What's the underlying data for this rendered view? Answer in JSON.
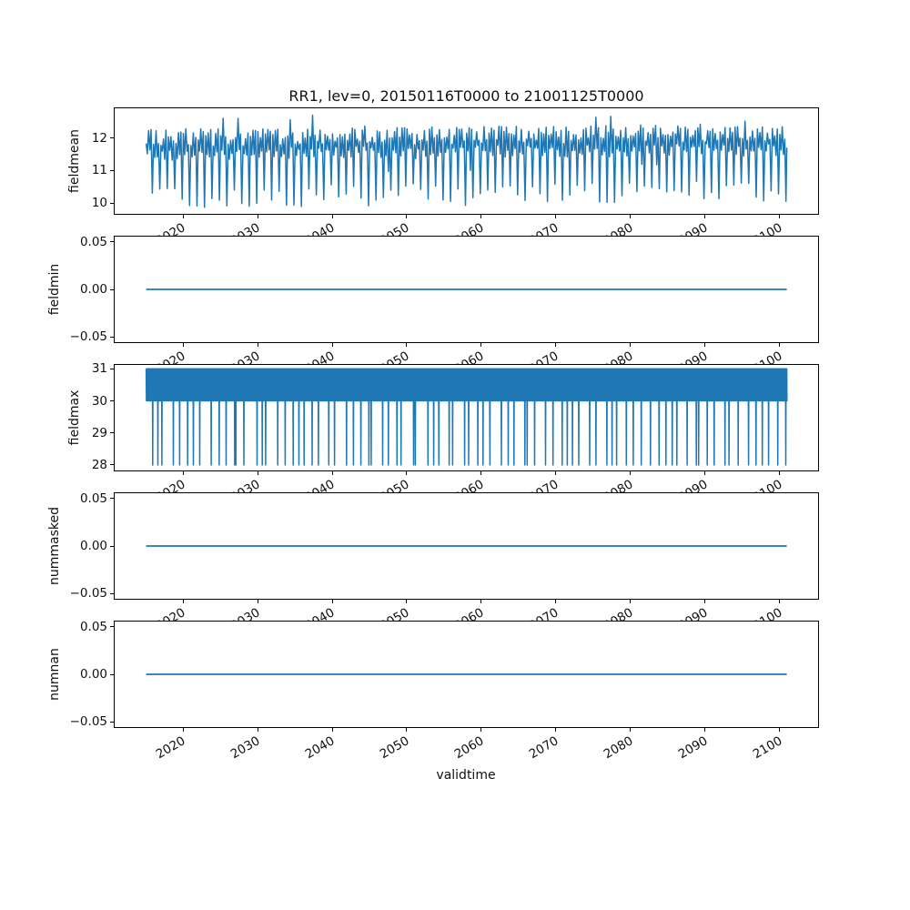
{
  "figure": {
    "title": "RR1, lev=0, 20150116T0000 to 21001125T0000",
    "xlabel": "validtime",
    "seed": 20150116,
    "line_color": "#1f77b4",
    "axis_color": "#000000",
    "text_color": "#111111",
    "background": "#ffffff",
    "xlim": [
      2010.7,
      2105.3
    ],
    "x_start": 2015.04,
    "x_end": 2100.98,
    "years": 86,
    "xticks": [
      {
        "value": 2020,
        "label": "2020"
      },
      {
        "value": 2030,
        "label": "2030"
      },
      {
        "value": 2040,
        "label": "2040"
      },
      {
        "value": 2050,
        "label": "2050"
      },
      {
        "value": 2060,
        "label": "2060"
      },
      {
        "value": 2070,
        "label": "2070"
      },
      {
        "value": 2080,
        "label": "2080"
      },
      {
        "value": 2090,
        "label": "2090"
      },
      {
        "value": 2100,
        "label": "2100"
      }
    ]
  },
  "chart_data": [
    {
      "name": "fieldmean",
      "type": "line",
      "ylabel": "fieldmean",
      "ylim": [
        9.64,
        12.94
      ],
      "yticks": [
        {
          "value": 12,
          "label": "12"
        },
        {
          "value": 11,
          "label": "11"
        },
        {
          "value": 10,
          "label": "10"
        }
      ],
      "series": {
        "kind": "annual-noisy",
        "points_per_year": 6,
        "peak": 12.08,
        "valley": 11.5,
        "noise": 0.5,
        "dip_min": 9.85,
        "dip_max": 10.55,
        "secondary_dip": 10.8,
        "trend": 0.15,
        "min": 9.8,
        "max": 12.78
      },
      "summary": {
        "typical_band": [
          11.3,
          12.4
        ],
        "annual_dip_to": [
          9.8,
          10.6
        ]
      }
    },
    {
      "name": "fieldmin",
      "type": "line",
      "ylabel": "fieldmin",
      "ylim": [
        -0.0567,
        0.0567
      ],
      "yticks": [
        {
          "value": 0.05,
          "label": "0.05"
        },
        {
          "value": 0,
          "label": "0.00"
        },
        {
          "value": -0.05,
          "label": "−0.05"
        }
      ],
      "series": {
        "kind": "constant",
        "value": 0
      }
    },
    {
      "name": "fieldmax",
      "type": "line",
      "ylabel": "fieldmax",
      "ylim": [
        27.8,
        31.15
      ],
      "yticks": [
        {
          "value": 31,
          "label": "31"
        },
        {
          "value": 30,
          "label": "30"
        },
        {
          "value": 29,
          "label": "29"
        },
        {
          "value": 28,
          "label": "28"
        }
      ],
      "series": {
        "kind": "square-band",
        "points_per_year": 26,
        "high": 31,
        "low": 30,
        "dip": 28
      },
      "summary": {
        "oscillates_between": [
          30,
          31
        ],
        "annual_spike_down_to": 28
      }
    },
    {
      "name": "nummasked",
      "type": "line",
      "ylabel": "nummasked",
      "ylim": [
        -0.0567,
        0.0567
      ],
      "yticks": [
        {
          "value": 0.05,
          "label": "0.05"
        },
        {
          "value": 0,
          "label": "0.00"
        },
        {
          "value": -0.05,
          "label": "−0.05"
        }
      ],
      "series": {
        "kind": "constant",
        "value": 0
      }
    },
    {
      "name": "numnan",
      "type": "line",
      "ylabel": "numnan",
      "ylim": [
        -0.0567,
        0.0567
      ],
      "yticks": [
        {
          "value": 0.05,
          "label": "0.05"
        },
        {
          "value": 0,
          "label": "0.00"
        },
        {
          "value": -0.05,
          "label": "−0.05"
        }
      ],
      "series": {
        "kind": "constant",
        "value": 0
      },
      "xlabel_visible": true
    }
  ]
}
